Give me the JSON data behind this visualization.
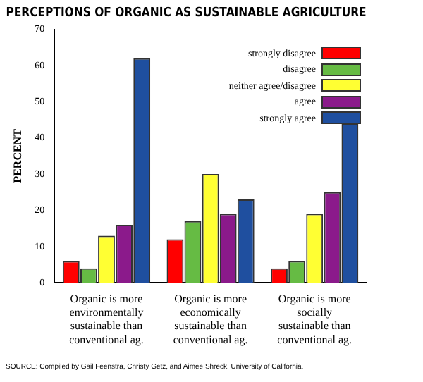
{
  "chart_data": {
    "type": "bar",
    "title": "PERCEPTIONS OF ORGANIC AS SUSTAINABLE AGRICULTURE",
    "ylabel": "PERCENT",
    "categories": [
      "Organic is more environmentally sustainable than conventional ag.",
      "Organic is more economically sustainable than conventional ag.",
      "Organic is more socially sustainable than conventional ag."
    ],
    "series": [
      {
        "name": "strongly disagree",
        "color": "#ff0000",
        "values": [
          6,
          12,
          4
        ]
      },
      {
        "name": "disagree",
        "color": "#66bb44",
        "values": [
          4,
          17,
          6
        ]
      },
      {
        "name": "neither agree/disagree",
        "color": "#ffff33",
        "values": [
          13,
          30,
          19
        ]
      },
      {
        "name": "agree",
        "color": "#8b1a8b",
        "values": [
          16,
          19,
          25
        ]
      },
      {
        "name": "strongly agree",
        "color": "#1f4f9f",
        "values": [
          62,
          23,
          44
        ]
      }
    ],
    "ylim": [
      0,
      70
    ],
    "yticks": [
      0,
      10,
      20,
      30,
      40,
      50,
      60,
      70
    ],
    "grid": false,
    "legend": "top right",
    "annotations": [
      "SOURCE: Compiled by Gail Feenstra, Christy Getz, and Aimee Shreck, University of California."
    ]
  }
}
